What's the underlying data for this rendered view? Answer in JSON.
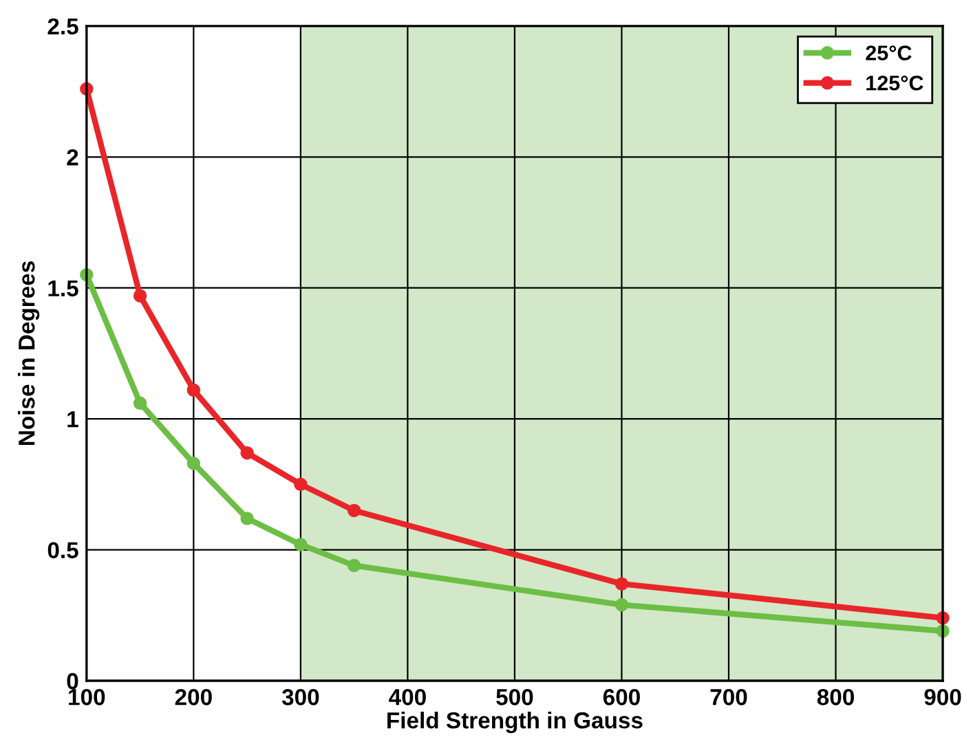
{
  "chart_data": {
    "type": "line",
    "xlabel": "Field Strength in Gauss",
    "ylabel": "Noise in Degrees",
    "x": [
      100,
      150,
      200,
      250,
      300,
      350,
      600,
      900
    ],
    "series": [
      {
        "name": "25°C",
        "color": "#6cbe45",
        "values": [
          1.55,
          1.06,
          0.83,
          0.62,
          0.52,
          0.44,
          0.29,
          0.19
        ]
      },
      {
        "name": "125°C",
        "color": "#e8262a",
        "values": [
          2.26,
          1.47,
          1.11,
          0.87,
          0.75,
          0.65,
          0.37,
          0.24
        ]
      }
    ],
    "xlim": [
      100,
      900
    ],
    "xticks": [
      100,
      200,
      300,
      400,
      500,
      600,
      700,
      800,
      900
    ],
    "ylim": [
      0,
      2.5
    ],
    "yticks": [
      0,
      0.5,
      1,
      1.5,
      2,
      2.5
    ],
    "bands": [
      {
        "axis": "x",
        "from": 300,
        "to": 900,
        "color": "#d2e8c8"
      }
    ],
    "grid": true,
    "legend": "top right",
    "marker": "circle",
    "line_style": "solid"
  }
}
